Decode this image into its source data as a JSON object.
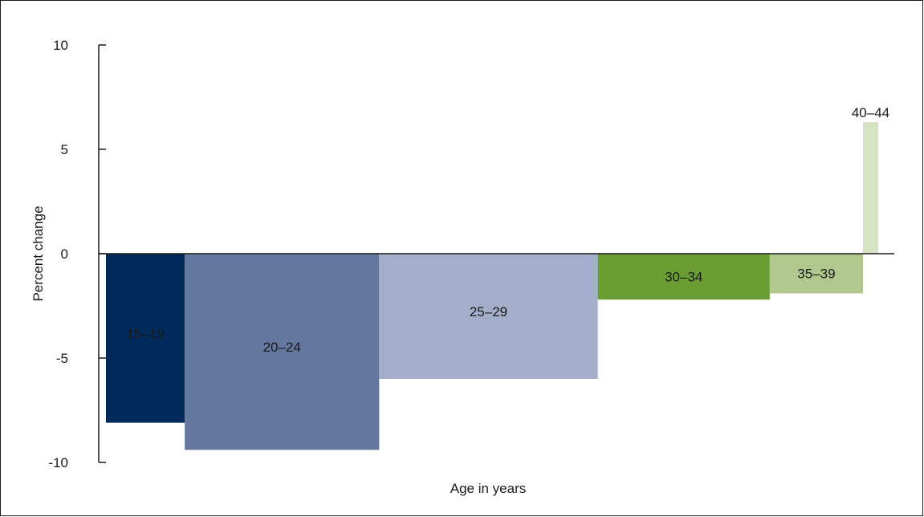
{
  "chart_data": {
    "type": "bar",
    "title": "",
    "xlabel": "Age in years",
    "ylabel": "Percent change",
    "ylim": [
      -10,
      10
    ],
    "yticks": [
      10,
      5,
      0,
      -5,
      -10
    ],
    "ytick_labels": [
      "10",
      "5",
      "0",
      "-5",
      "-10"
    ],
    "grid": false,
    "legend": "none",
    "note": "Variable-width bars; each bar is labeled with its age group.",
    "categories": [
      "15–19",
      "20–24",
      "25–29",
      "30–34",
      "35–39",
      "40–44"
    ],
    "values": [
      -8.1,
      -9.4,
      -6.0,
      -2.2,
      -1.9,
      6.3
    ],
    "relative_widths": [
      0.098,
      0.242,
      0.272,
      0.214,
      0.116,
      0.019
    ],
    "colors": [
      "#002a5c",
      "#63779f",
      "#a3afca",
      "#6a9e32",
      "#b0c88e",
      "#d6e3c3"
    ],
    "label_colors": [
      "#ffffff",
      "#ffffff",
      "#1a1a1a",
      "#ffffff",
      "#1a1a1a",
      "#1a1a1a"
    ]
  }
}
